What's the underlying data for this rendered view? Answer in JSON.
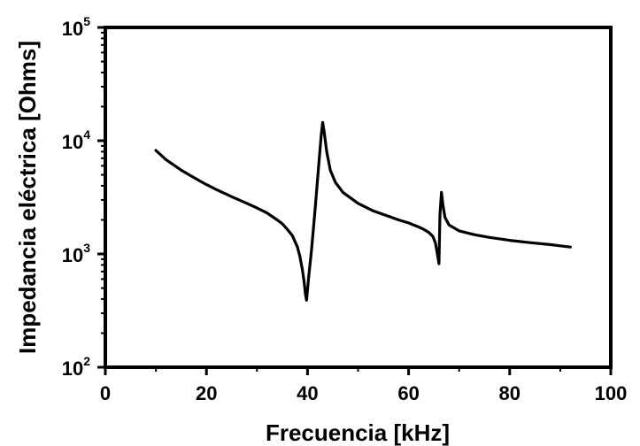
{
  "chart_data": {
    "type": "line",
    "xlabel": "Frecuencia [kHz]",
    "ylabel": "Impedancia eléctrica [Ohms]",
    "x_scale": "linear",
    "y_scale": "log",
    "xlim": [
      0,
      100
    ],
    "ylim": [
      100,
      100000
    ],
    "x_ticks": [
      0,
      20,
      40,
      60,
      80,
      100
    ],
    "y_ticks": [
      {
        "value": 100,
        "base": "10",
        "exp": "2"
      },
      {
        "value": 1000,
        "base": "10",
        "exp": "3"
      },
      {
        "value": 10000,
        "base": "10",
        "exp": "4"
      },
      {
        "value": 100000,
        "base": "10",
        "exp": "5"
      }
    ],
    "grid": false,
    "legend": "none",
    "line_color": "#000000",
    "series": [
      {
        "x": [
          10,
          12,
          15,
          18,
          20,
          22,
          25,
          28,
          30,
          32,
          34,
          35,
          36,
          37,
          38,
          38.5,
          39,
          39.3,
          39.6,
          39.8,
          40.2,
          40.8,
          41.5,
          42.2,
          42.7,
          43.0,
          43.3,
          43.8,
          44.5,
          45.5,
          47,
          50,
          53,
          56,
          58,
          60,
          61,
          62,
          63,
          64,
          64.8,
          65.3,
          65.7,
          66.0,
          66.2,
          66.5,
          66.8,
          67.2,
          68,
          70,
          73,
          76,
          80,
          84,
          88,
          92
        ],
        "y": [
          8200,
          6800,
          5500,
          4600,
          4100,
          3700,
          3200,
          2800,
          2550,
          2300,
          2000,
          1850,
          1650,
          1450,
          1150,
          950,
          720,
          580,
          440,
          390,
          600,
          1100,
          2500,
          6000,
          11000,
          14500,
          12000,
          8000,
          5500,
          4300,
          3500,
          2800,
          2400,
          2150,
          2000,
          1880,
          1800,
          1730,
          1650,
          1550,
          1430,
          1250,
          1000,
          820,
          2200,
          3500,
          2700,
          2100,
          1800,
          1600,
          1480,
          1400,
          1320,
          1260,
          1210,
          1150
        ]
      }
    ]
  }
}
